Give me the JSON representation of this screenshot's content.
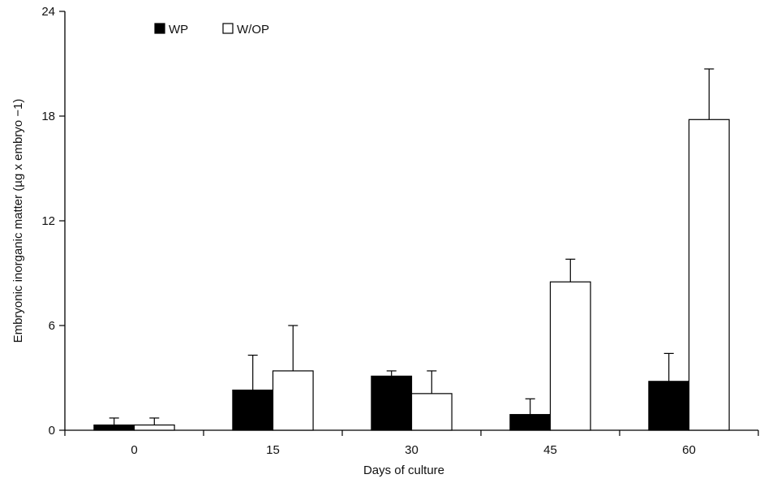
{
  "chart_data": {
    "type": "bar",
    "title": "",
    "xlabel": "Days of culture",
    "ylabel": "Embryonic inorganic matter (µg x embryo −1)",
    "ylim": [
      0,
      24
    ],
    "yticks": [
      "0",
      "6",
      "12",
      "18",
      "24"
    ],
    "categories": [
      "0",
      "15",
      "30",
      "45",
      "60"
    ],
    "legend_position": "top-left",
    "series": [
      {
        "name": "WP",
        "color": "#000000",
        "values": [
          0.3,
          2.3,
          3.1,
          0.9,
          2.8
        ],
        "errors": [
          0.4,
          2.0,
          0.3,
          0.9,
          1.6
        ]
      },
      {
        "name": "W/OP",
        "color": "#ffffff",
        "values": [
          0.3,
          3.4,
          2.1,
          8.5,
          17.8
        ],
        "errors": [
          0.4,
          2.6,
          1.3,
          1.3,
          2.9
        ]
      }
    ]
  }
}
